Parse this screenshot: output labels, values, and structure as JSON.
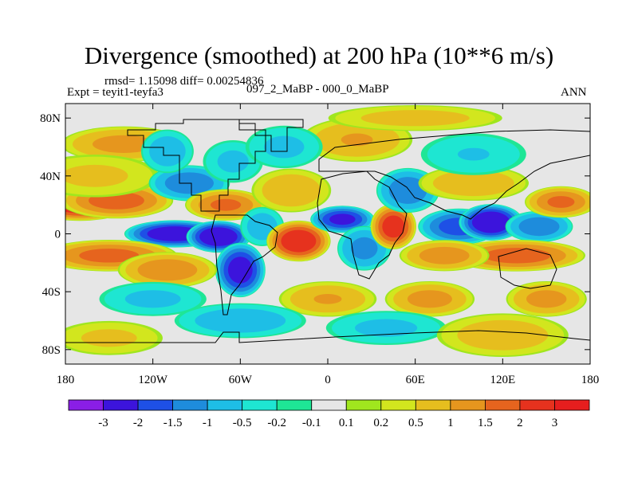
{
  "header": {
    "title": "Divergence (smoothed) at 200 hPa (10**6 m/s)",
    "stats": "rmsd= 1.15098 diff= 0.00254836",
    "expt": "Expt = teyit1-teyfa3",
    "period": "097_2_MaBP - 000_0_MaBP",
    "season": "ANN"
  },
  "chart_data": {
    "type": "heatmap",
    "title": "Divergence (smoothed) at 200 hPa (10**6 m/s)",
    "xlabel": "",
    "ylabel": "",
    "xlim": [
      -180,
      180
    ],
    "ylim": [
      -90,
      90
    ],
    "x_ticks": [
      {
        "value": -180,
        "label": "180"
      },
      {
        "value": -120,
        "label": "120W"
      },
      {
        "value": -60,
        "label": "60W"
      },
      {
        "value": 0,
        "label": "0"
      },
      {
        "value": 60,
        "label": "60E"
      },
      {
        "value": 120,
        "label": "120E"
      },
      {
        "value": 180,
        "label": "180"
      }
    ],
    "y_ticks": [
      {
        "value": 80,
        "label": "80N"
      },
      {
        "value": 40,
        "label": "40N"
      },
      {
        "value": 0,
        "label": "0"
      },
      {
        "value": -40,
        "label": "40S"
      },
      {
        "value": -80,
        "label": "80S"
      }
    ],
    "colorbar": {
      "placement": "bottom",
      "colors": [
        "#8a1ee6",
        "#3c14dc",
        "#1e50e6",
        "#1e8cdc",
        "#1ebee6",
        "#1ee6d2",
        "#1ee696",
        "#e6e6e6",
        "#a0e61e",
        "#d2e61e",
        "#e6be1e",
        "#e6961e",
        "#e6641e",
        "#e6321e",
        "#e61e1e"
      ],
      "labels": [
        "-3",
        "-2",
        "-1.5",
        "-1",
        "-0.5",
        "-0.2",
        "-0.1",
        "0.1",
        "0.2",
        "0.5",
        "1",
        "1.5",
        "2",
        "3"
      ]
    },
    "features": [
      {
        "lon": -170,
        "lat": 20,
        "value": 2.5,
        "slon": 22,
        "slat": 7
      },
      {
        "lon": -145,
        "lat": 23,
        "value": 1.8,
        "slon": 25,
        "slat": 8
      },
      {
        "lon": -140,
        "lat": 62,
        "value": 1.2,
        "slon": 28,
        "slat": 8
      },
      {
        "lon": -160,
        "lat": 40,
        "value": 0.6,
        "slon": 30,
        "slat": 10
      },
      {
        "lon": -95,
        "lat": 35,
        "value": -1.4,
        "slon": 18,
        "slat": 8
      },
      {
        "lon": -110,
        "lat": 57,
        "value": -0.8,
        "slon": 12,
        "slat": 10
      },
      {
        "lon": -65,
        "lat": 50,
        "value": -0.6,
        "slon": 14,
        "slat": 10
      },
      {
        "lon": -70,
        "lat": 20,
        "value": 1.6,
        "slon": 18,
        "slat": 7
      },
      {
        "lon": -105,
        "lat": 0,
        "value": -2.6,
        "slon": 22,
        "slat": 6
      },
      {
        "lon": -75,
        "lat": -2,
        "value": -2.8,
        "slon": 14,
        "slat": 7
      },
      {
        "lon": -60,
        "lat": -25,
        "value": -2.4,
        "slon": 11,
        "slat": 12
      },
      {
        "lon": -45,
        "lat": 5,
        "value": -0.8,
        "slon": 10,
        "slat": 9
      },
      {
        "lon": -150,
        "lat": -15,
        "value": 1.7,
        "slon": 30,
        "slat": 7
      },
      {
        "lon": -110,
        "lat": -25,
        "value": 1.4,
        "slon": 22,
        "slat": 8
      },
      {
        "lon": -120,
        "lat": -45,
        "value": -0.6,
        "slon": 25,
        "slat": 8
      },
      {
        "lon": -20,
        "lat": -5,
        "value": 2.6,
        "slon": 14,
        "slat": 9
      },
      {
        "lon": -25,
        "lat": 30,
        "value": 0.9,
        "slon": 18,
        "slat": 10
      },
      {
        "lon": 10,
        "lat": 10,
        "value": -2.2,
        "slon": 14,
        "slat": 6
      },
      {
        "lon": 25,
        "lat": -10,
        "value": -1.2,
        "slon": 12,
        "slat": 10
      },
      {
        "lon": 45,
        "lat": 5,
        "value": 2.4,
        "slon": 10,
        "slat": 10
      },
      {
        "lon": 55,
        "lat": 30,
        "value": -1.4,
        "slon": 14,
        "slat": 10
      },
      {
        "lon": 90,
        "lat": 5,
        "value": -1.8,
        "slon": 18,
        "slat": 8
      },
      {
        "lon": 112,
        "lat": 8,
        "value": -2.8,
        "slon": 14,
        "slat": 8
      },
      {
        "lon": 145,
        "lat": 5,
        "value": -1.4,
        "slon": 15,
        "slat": 7
      },
      {
        "lon": 130,
        "lat": -15,
        "value": 1.8,
        "slon": 30,
        "slat": 7
      },
      {
        "lon": 80,
        "lat": -15,
        "value": 1.3,
        "slon": 20,
        "slat": 7
      },
      {
        "lon": 100,
        "lat": 35,
        "value": 0.9,
        "slon": 25,
        "slat": 8
      },
      {
        "lon": 160,
        "lat": 22,
        "value": 1.6,
        "slon": 16,
        "slat": 7
      },
      {
        "lon": 100,
        "lat": 55,
        "value": -0.5,
        "slon": 25,
        "slat": 10
      },
      {
        "lon": 20,
        "lat": 65,
        "value": 1.0,
        "slon": 25,
        "slat": 10
      },
      {
        "lon": -30,
        "lat": 60,
        "value": -0.6,
        "slon": 18,
        "slat": 10
      },
      {
        "lon": 0,
        "lat": -45,
        "value": 1.0,
        "slon": 22,
        "slat": 8
      },
      {
        "lon": 70,
        "lat": -45,
        "value": 1.2,
        "slon": 20,
        "slat": 8
      },
      {
        "lon": 150,
        "lat": -45,
        "value": 1.2,
        "slon": 18,
        "slat": 8
      },
      {
        "lon": -60,
        "lat": -60,
        "value": -0.8,
        "slon": 30,
        "slat": 8
      },
      {
        "lon": 40,
        "lat": -65,
        "value": -0.6,
        "slon": 28,
        "slat": 8
      },
      {
        "lon": 120,
        "lat": -70,
        "value": 0.8,
        "slon": 30,
        "slat": 10
      },
      {
        "lon": -150,
        "lat": -72,
        "value": 0.6,
        "slon": 25,
        "slat": 8
      },
      {
        "lon": 60,
        "lat": 80,
        "value": 0.7,
        "slon": 40,
        "slat": 6
      }
    ]
  }
}
